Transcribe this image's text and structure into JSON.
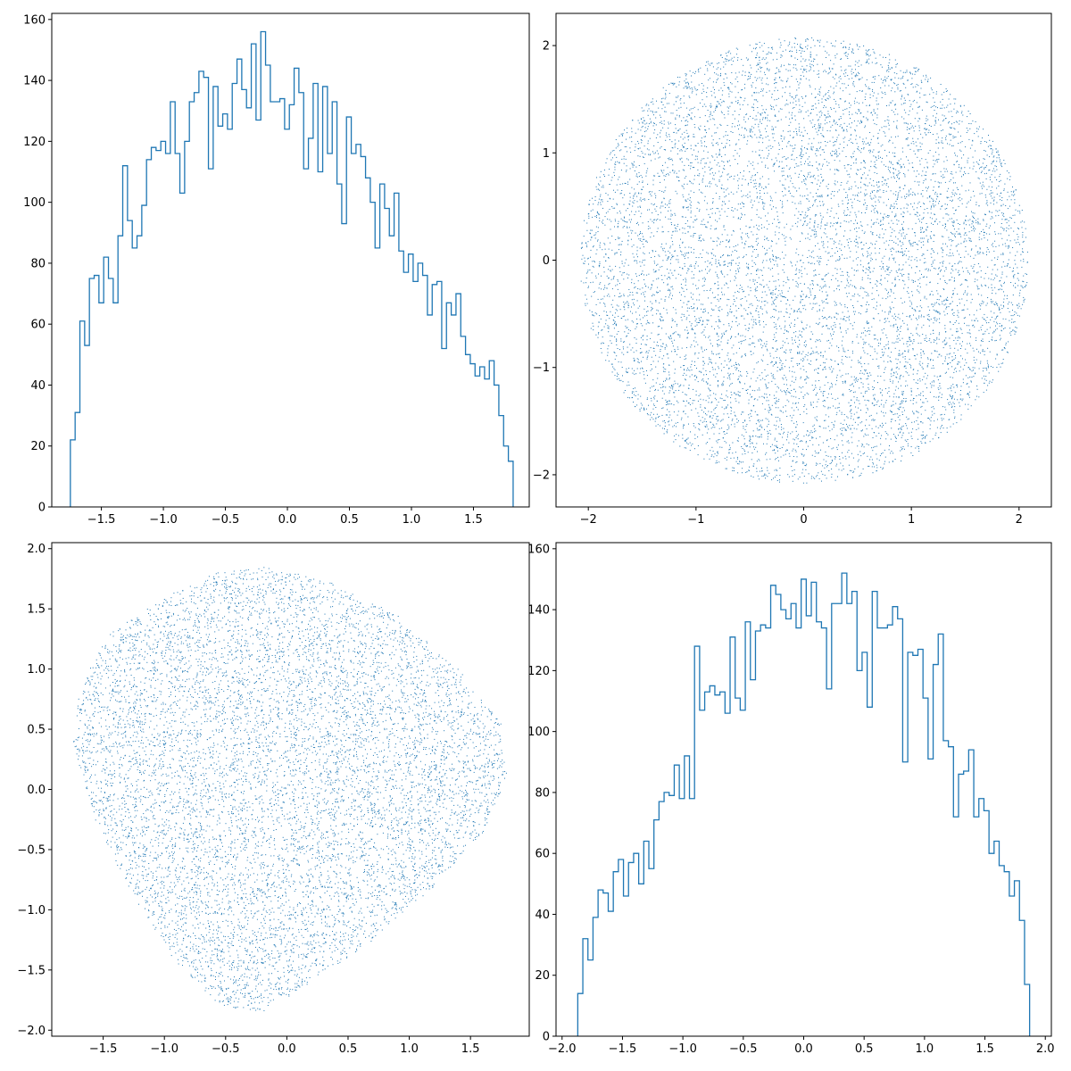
{
  "chart_data": [
    {
      "type": "histogram",
      "position": "top-left",
      "xlim": [
        -1.9,
        1.95
      ],
      "ylim": [
        0,
        162
      ],
      "xticks": [
        -1.5,
        -1.0,
        -0.5,
        0.0,
        0.5,
        1.0,
        1.5
      ],
      "xtick_labels": [
        "−1.5",
        "−1.0",
        "−0.5",
        "0.0",
        "0.5",
        "1.0",
        "1.5"
      ],
      "yticks": [
        0,
        20,
        40,
        60,
        80,
        100,
        120,
        140,
        160
      ],
      "ytick_labels": [
        "0",
        "20",
        "40",
        "60",
        "80",
        "100",
        "120",
        "140",
        "160"
      ],
      "bin_range": [
        -1.75,
        1.82
      ],
      "counts": [
        22,
        31,
        61,
        53,
        75,
        76,
        67,
        82,
        75,
        67,
        89,
        112,
        94,
        85,
        89,
        99,
        114,
        118,
        117,
        120,
        116,
        133,
        116,
        103,
        120,
        133,
        136,
        143,
        141,
        111,
        138,
        125,
        129,
        124,
        139,
        147,
        137,
        131,
        152,
        127,
        156,
        145,
        133,
        133,
        134,
        124,
        132,
        144,
        136,
        111,
        121,
        139,
        110,
        138,
        116,
        133,
        106,
        93,
        128,
        116,
        119,
        115,
        108,
        100,
        85,
        106,
        98,
        89,
        103,
        84,
        77,
        83,
        74,
        80,
        76,
        63,
        73,
        74,
        52,
        67,
        63,
        70,
        56,
        50,
        47,
        43,
        46,
        42,
        48,
        40,
        30,
        20,
        15
      ],
      "color": "#1f77b4"
    },
    {
      "type": "scatter",
      "position": "top-right",
      "shape": "disc",
      "center": [
        0,
        0
      ],
      "radius": 2.08,
      "n_points": 9000,
      "xlim": [
        -2.3,
        2.3
      ],
      "ylim": [
        -2.3,
        2.3
      ],
      "xticks": [
        -2,
        -1,
        0,
        1,
        2
      ],
      "xtick_labels": [
        "−2",
        "−1",
        "0",
        "1",
        "2"
      ],
      "yticks": [
        -2,
        -1,
        0,
        1,
        2
      ],
      "ytick_labels": [
        "−2",
        "−1",
        "0",
        "1",
        "2"
      ],
      "color": "#1f77b4"
    },
    {
      "type": "scatter",
      "position": "bottom-left",
      "shape": "rounded-triangle",
      "boundary": [
        [
          -0.2,
          1.85
        ],
        [
          0.3,
          1.75
        ],
        [
          0.9,
          1.45
        ],
        [
          1.4,
          1.0
        ],
        [
          1.75,
          0.55
        ],
        [
          1.8,
          0.1
        ],
        [
          1.6,
          -0.35
        ],
        [
          1.2,
          -0.8
        ],
        [
          0.7,
          -1.25
        ],
        [
          0.2,
          -1.6
        ],
        [
          -0.2,
          -1.85
        ],
        [
          -0.55,
          -1.8
        ],
        [
          -0.9,
          -1.45
        ],
        [
          -1.25,
          -0.9
        ],
        [
          -1.55,
          -0.3
        ],
        [
          -1.75,
          0.35
        ],
        [
          -1.7,
          0.85
        ],
        [
          -1.45,
          1.3
        ],
        [
          -1.0,
          1.6
        ],
        [
          -0.6,
          1.8
        ]
      ],
      "n_points": 9000,
      "xlim": [
        -1.92,
        1.98
      ],
      "ylim": [
        -2.05,
        2.05
      ],
      "xticks": [
        -1.5,
        -1.0,
        -0.5,
        0.0,
        0.5,
        1.0,
        1.5
      ],
      "xtick_labels": [
        "−1.5",
        "−1.0",
        "−0.5",
        "0.0",
        "0.5",
        "1.0",
        "1.5"
      ],
      "yticks": [
        -2.0,
        -1.5,
        -1.0,
        -0.5,
        0.0,
        0.5,
        1.0,
        1.5,
        2.0
      ],
      "ytick_labels": [
        "−2.0",
        "−1.5",
        "−1.0",
        "−0.5",
        "0.0",
        "0.5",
        "1.0",
        "1.5",
        "2.0"
      ],
      "color": "#1f77b4"
    },
    {
      "type": "histogram",
      "position": "bottom-right",
      "xlim": [
        -2.05,
        2.05
      ],
      "ylim": [
        0,
        162
      ],
      "xticks": [
        -2.0,
        -1.5,
        -1.0,
        -0.5,
        0.0,
        0.5,
        1.0,
        1.5,
        2.0
      ],
      "xtick_labels": [
        "−2.0",
        "−1.5",
        "−1.0",
        "−0.5",
        "0.0",
        "0.5",
        "1.0",
        "1.5",
        "2.0"
      ],
      "yticks": [
        0,
        20,
        40,
        60,
        80,
        100,
        120,
        140,
        160
      ],
      "ytick_labels": [
        "0",
        "20",
        "40",
        "60",
        "80",
        "100",
        "120",
        "140",
        "160"
      ],
      "bin_range": [
        -1.87,
        1.87
      ],
      "counts": [
        14,
        32,
        25,
        39,
        48,
        47,
        41,
        54,
        58,
        46,
        57,
        60,
        50,
        64,
        55,
        71,
        77,
        80,
        79,
        89,
        78,
        92,
        78,
        128,
        107,
        113,
        115,
        112,
        113,
        106,
        131,
        111,
        107,
        136,
        117,
        133,
        135,
        134,
        148,
        145,
        140,
        137,
        142,
        134,
        150,
        138,
        149,
        136,
        134,
        114,
        142,
        142,
        152,
        142,
        146,
        120,
        126,
        108,
        146,
        134,
        134,
        135,
        141,
        137,
        90,
        126,
        125,
        127,
        111,
        91,
        122,
        132,
        97,
        95,
        72,
        86,
        87,
        94,
        72,
        78,
        74,
        60,
        64,
        56,
        54,
        46,
        51,
        38,
        17
      ]
    }
  ]
}
